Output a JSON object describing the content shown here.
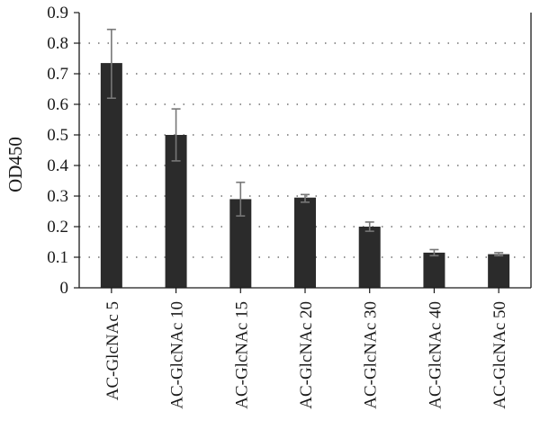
{
  "chart_data": {
    "type": "bar",
    "title": "",
    "xlabel": "",
    "ylabel": "OD450",
    "categories": [
      "AC-GlcNAc 5",
      "AC-GlcNAc 10",
      "AC-GlcNAc 15",
      "AC-GlcNAc 20",
      "AC-GlcNAc 30",
      "AC-GlcNAc 40",
      "AC-GlcNAc 50"
    ],
    "values": [
      0.735,
      0.5,
      0.29,
      0.295,
      0.2,
      0.115,
      0.11
    ],
    "error_low": [
      0.62,
      0.415,
      0.235,
      0.28,
      0.185,
      0.105,
      0.105
    ],
    "error_high": [
      0.845,
      0.585,
      0.345,
      0.305,
      0.215,
      0.125,
      0.115
    ],
    "ylim": [
      0,
      0.9
    ],
    "yticks": [
      "0",
      "0.1",
      "0.2",
      "0.3",
      "0.4",
      "0.5",
      "0.6",
      "0.7",
      "0.8",
      "0.9"
    ],
    "grid": "horizontal dotted",
    "colors": {
      "bar": "#2b2b2b",
      "errorbar": "#777777",
      "axis": "#1a1a1a",
      "grid": "#555555"
    }
  }
}
